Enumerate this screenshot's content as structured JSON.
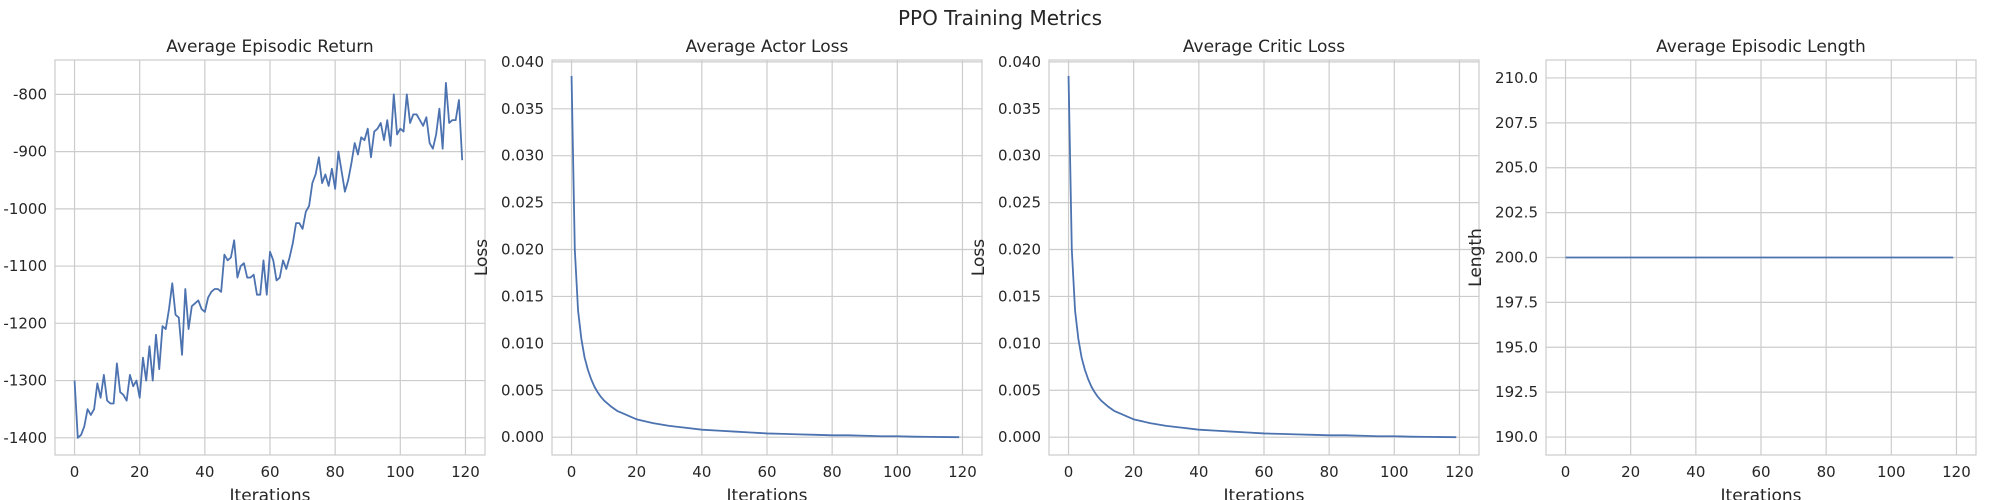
{
  "figure_title": "PPO Training Metrics",
  "colors": {
    "line": "#4c72b0",
    "grid": "#cccccc",
    "text": "#262626",
    "background": "#ffffff"
  },
  "chart_data": [
    {
      "type": "line",
      "title": "Average Episodic Return",
      "xlabel": "Iterations",
      "ylabel": "",
      "xlim": [
        -6,
        126
      ],
      "ylim": [
        -1430,
        -740
      ],
      "xticks": [
        0,
        20,
        40,
        60,
        80,
        100,
        120
      ],
      "xtick_labels": [
        "0",
        "20",
        "40",
        "60",
        "80",
        "100",
        "120"
      ],
      "yticks": [
        -1400,
        -1300,
        -1200,
        -1100,
        -1000,
        -900,
        -800
      ],
      "ytick_labels": [
        "-1400",
        "-1300",
        "-1200",
        "-1100",
        "-1000",
        "-900",
        "-800"
      ],
      "grid": true,
      "series": [
        {
          "x": [
            0,
            1,
            2,
            3,
            4,
            5,
            6,
            7,
            8,
            9,
            10,
            11,
            12,
            13,
            14,
            15,
            16,
            17,
            18,
            19,
            20,
            21,
            22,
            23,
            24,
            25,
            26,
            27,
            28,
            29,
            30,
            31,
            32,
            33,
            34,
            35,
            36,
            37,
            38,
            39,
            40,
            41,
            42,
            43,
            44,
            45,
            46,
            47,
            48,
            49,
            50,
            51,
            52,
            53,
            54,
            55,
            56,
            57,
            58,
            59,
            60,
            61,
            62,
            63,
            64,
            65,
            66,
            67,
            68,
            69,
            70,
            71,
            72,
            73,
            74,
            75,
            76,
            77,
            78,
            79,
            80,
            81,
            82,
            83,
            84,
            85,
            86,
            87,
            88,
            89,
            90,
            91,
            92,
            93,
            94,
            95,
            96,
            97,
            98,
            99,
            100,
            101,
            102,
            103,
            104,
            105,
            106,
            107,
            108,
            109,
            110,
            111,
            112,
            113,
            114,
            115,
            116,
            117,
            118,
            119
          ],
          "values": [
            -1300,
            -1400,
            -1395,
            -1380,
            -1350,
            -1360,
            -1350,
            -1305,
            -1330,
            -1290,
            -1335,
            -1340,
            -1340,
            -1270,
            -1320,
            -1325,
            -1335,
            -1290,
            -1310,
            -1300,
            -1330,
            -1260,
            -1300,
            -1240,
            -1300,
            -1220,
            -1280,
            -1205,
            -1210,
            -1175,
            -1130,
            -1185,
            -1190,
            -1255,
            -1140,
            -1210,
            -1170,
            -1165,
            -1160,
            -1175,
            -1180,
            -1155,
            -1145,
            -1140,
            -1140,
            -1145,
            -1080,
            -1090,
            -1085,
            -1055,
            -1120,
            -1100,
            -1095,
            -1120,
            -1120,
            -1115,
            -1150,
            -1150,
            -1090,
            -1150,
            -1075,
            -1090,
            -1125,
            -1120,
            -1090,
            -1105,
            -1085,
            -1060,
            -1025,
            -1025,
            -1035,
            -1005,
            -995,
            -955,
            -940,
            -910,
            -955,
            -940,
            -960,
            -930,
            -965,
            -900,
            -935,
            -970,
            -950,
            -920,
            -885,
            -905,
            -875,
            -880,
            -860,
            -910,
            -865,
            -860,
            -850,
            -880,
            -845,
            -890,
            -800,
            -870,
            -860,
            -865,
            -800,
            -850,
            -835,
            -835,
            -845,
            -855,
            -840,
            -885,
            -895,
            -870,
            -825,
            -895,
            -780,
            -850,
            -845,
            -845,
            -810,
            -915
          ]
        }
      ]
    },
    {
      "type": "line",
      "title": "Average Actor Loss",
      "xlabel": "Iterations",
      "ylabel": "Loss",
      "xlim": [
        -6,
        126
      ],
      "ylim": [
        -0.0019,
        0.0402
      ],
      "xticks": [
        0,
        20,
        40,
        60,
        80,
        100,
        120
      ],
      "xtick_labels": [
        "0",
        "20",
        "40",
        "60",
        "80",
        "100",
        "120"
      ],
      "yticks": [
        0.0,
        0.005,
        0.01,
        0.015,
        0.02,
        0.025,
        0.03,
        0.035,
        0.04
      ],
      "ytick_labels": [
        "0.000",
        "0.005",
        "0.010",
        "0.015",
        "0.020",
        "0.025",
        "0.030",
        "0.035",
        "0.040"
      ],
      "grid": true,
      "series": [
        {
          "x": [
            0,
            1,
            2,
            3,
            4,
            5,
            6,
            7,
            8,
            9,
            10,
            12,
            14,
            16,
            18,
            20,
            25,
            30,
            35,
            40,
            45,
            50,
            55,
            60,
            65,
            70,
            75,
            80,
            85,
            90,
            95,
            100,
            105,
            110,
            115,
            119
          ],
          "values": [
            0.0385,
            0.02,
            0.0135,
            0.0105,
            0.0085,
            0.0072,
            0.0062,
            0.0054,
            0.0048,
            0.0043,
            0.0039,
            0.0033,
            0.0028,
            0.0025,
            0.0022,
            0.0019,
            0.0015,
            0.0012,
            0.001,
            0.0008,
            0.0007,
            0.0006,
            0.0005,
            0.0004,
            0.00035,
            0.0003,
            0.00025,
            0.0002,
            0.0002,
            0.00015,
            0.0001,
            0.0001,
            5e-05,
            3e-05,
            1e-05,
            0.0
          ]
        }
      ]
    },
    {
      "type": "line",
      "title": "Average Critic Loss",
      "xlabel": "Iterations",
      "ylabel": "Loss",
      "xlim": [
        -6,
        126
      ],
      "ylim": [
        -0.0019,
        0.0402
      ],
      "xticks": [
        0,
        20,
        40,
        60,
        80,
        100,
        120
      ],
      "xtick_labels": [
        "0",
        "20",
        "40",
        "60",
        "80",
        "100",
        "120"
      ],
      "yticks": [
        0.0,
        0.005,
        0.01,
        0.015,
        0.02,
        0.025,
        0.03,
        0.035,
        0.04
      ],
      "ytick_labels": [
        "0.000",
        "0.005",
        "0.010",
        "0.015",
        "0.020",
        "0.025",
        "0.030",
        "0.035",
        "0.040"
      ],
      "grid": true,
      "series": [
        {
          "x": [
            0,
            1,
            2,
            3,
            4,
            5,
            6,
            7,
            8,
            9,
            10,
            12,
            14,
            16,
            18,
            20,
            25,
            30,
            35,
            40,
            45,
            50,
            55,
            60,
            65,
            70,
            75,
            80,
            85,
            90,
            95,
            100,
            105,
            110,
            115,
            119
          ],
          "values": [
            0.0385,
            0.02,
            0.0135,
            0.0105,
            0.0085,
            0.0072,
            0.0062,
            0.0054,
            0.0048,
            0.0043,
            0.0039,
            0.0033,
            0.0028,
            0.0025,
            0.0022,
            0.0019,
            0.0015,
            0.0012,
            0.001,
            0.0008,
            0.0007,
            0.0006,
            0.0005,
            0.0004,
            0.00035,
            0.0003,
            0.00025,
            0.0002,
            0.0002,
            0.00015,
            0.0001,
            0.0001,
            5e-05,
            3e-05,
            1e-05,
            0.0
          ]
        }
      ]
    },
    {
      "type": "line",
      "title": "Average Episodic Length",
      "xlabel": "Iterations",
      "ylabel": "Length",
      "xlim": [
        -6,
        126
      ],
      "ylim": [
        189.0,
        211.0
      ],
      "xticks": [
        0,
        20,
        40,
        60,
        80,
        100,
        120
      ],
      "xtick_labels": [
        "0",
        "20",
        "40",
        "60",
        "80",
        "100",
        "120"
      ],
      "yticks": [
        190.0,
        192.5,
        195.0,
        197.5,
        200.0,
        202.5,
        205.0,
        207.5,
        210.0
      ],
      "ytick_labels": [
        "190.0",
        "192.5",
        "195.0",
        "197.5",
        "200.0",
        "202.5",
        "205.0",
        "207.5",
        "210.0"
      ],
      "grid": true,
      "series": [
        {
          "x": [
            0,
            119
          ],
          "values": [
            200.0,
            200.0
          ]
        }
      ]
    }
  ]
}
